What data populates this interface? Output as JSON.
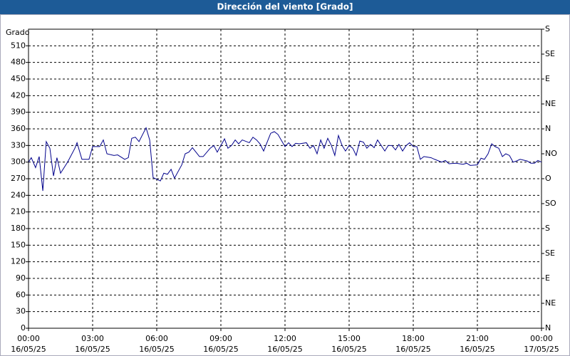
{
  "chart_data": {
    "type": "line",
    "title": "Dirección del viento [Grado]",
    "ylabel": "Grado",
    "x": [
      0,
      0.13,
      0.33,
      0.5,
      0.67,
      0.83,
      1.0,
      1.17,
      1.33,
      1.5,
      1.83,
      2.17,
      2.27,
      2.5,
      2.83,
      3.0,
      3.33,
      3.5,
      3.67,
      4.0,
      4.17,
      4.5,
      4.67,
      4.83,
      5.0,
      5.17,
      5.5,
      5.67,
      5.83,
      6.17,
      6.33,
      6.5,
      6.67,
      6.83,
      7.17,
      7.33,
      7.5,
      7.67,
      8.0,
      8.17,
      8.5,
      8.67,
      8.83,
      9.0,
      9.17,
      9.33,
      9.5,
      9.67,
      9.83,
      10.0,
      10.33,
      10.5,
      10.67,
      10.83,
      11.0,
      11.33,
      11.5,
      11.67,
      12.0,
      12.17,
      12.33,
      12.5,
      12.67,
      13.0,
      13.17,
      13.33,
      13.5,
      13.67,
      13.83,
      14.0,
      14.17,
      14.33,
      14.5,
      14.67,
      14.83,
      15.0,
      15.17,
      15.33,
      15.5,
      15.67,
      15.83,
      16.0,
      16.17,
      16.33,
      16.67,
      16.83,
      17.0,
      17.17,
      17.33,
      17.5,
      17.67,
      17.83,
      18.0,
      18.17,
      18.33,
      18.5,
      18.83,
      19.0,
      19.33,
      19.5,
      19.67,
      20.0,
      20.33,
      20.5,
      20.67,
      21.0,
      21.17,
      21.33,
      21.5,
      21.67,
      21.83,
      22.0,
      22.17,
      22.33,
      22.5,
      22.67,
      22.83,
      23.0,
      23.33,
      23.5,
      23.67,
      23.83,
      24.0
    ],
    "series": [
      {
        "color": "#00008b",
        "values": [
          300,
          308,
          290,
          310,
          248,
          337,
          325,
          275,
          308,
          280,
          300,
          325,
          335,
          305,
          305,
          328,
          328,
          340,
          315,
          312,
          313,
          305,
          308,
          343,
          345,
          337,
          362,
          340,
          272,
          266,
          280,
          278,
          287,
          271,
          295,
          315,
          318,
          326,
          310,
          310,
          325,
          330,
          318,
          330,
          342,
          325,
          330,
          340,
          333,
          340,
          335,
          345,
          340,
          333,
          320,
          352,
          355,
          350,
          328,
          335,
          328,
          334,
          333,
          335,
          325,
          330,
          315,
          340,
          325,
          343,
          330,
          312,
          348,
          330,
          320,
          330,
          325,
          312,
          338,
          336,
          325,
          332,
          326,
          340,
          320,
          330,
          330,
          322,
          332,
          320,
          330,
          335,
          328,
          328,
          305,
          310,
          308,
          305,
          300,
          303,
          297,
          298,
          296,
          298,
          294,
          295,
          307,
          305,
          315,
          333,
          328,
          325,
          310,
          315,
          312,
          300,
          302,
          305,
          302,
          298,
          298,
          303,
          300
        ]
      }
    ],
    "xlim": [
      0,
      24
    ],
    "xticks": [
      {
        "value": 0,
        "label": "00:00"
      },
      {
        "value": 3,
        "label": "03:00"
      },
      {
        "value": 6,
        "label": "06:00"
      },
      {
        "value": 9,
        "label": "09:00"
      },
      {
        "value": 12,
        "label": "12:00"
      },
      {
        "value": 15,
        "label": "15:00"
      },
      {
        "value": 18,
        "label": "18:00"
      },
      {
        "value": 21,
        "label": "21:00"
      },
      {
        "value": 24,
        "label": "00:00"
      }
    ],
    "xtick_dates": [
      "16/05/25",
      "16/05/25",
      "16/05/25",
      "16/05/25",
      "16/05/25",
      "16/05/25",
      "16/05/25",
      "16/05/25",
      "17/05/25"
    ],
    "ylim": [
      0,
      540
    ],
    "yticks": [
      0,
      30,
      60,
      90,
      120,
      150,
      180,
      210,
      240,
      270,
      300,
      330,
      360,
      390,
      420,
      450,
      480,
      510
    ],
    "y2lim": [
      0,
      540
    ],
    "y2ticks": [
      {
        "value": 0,
        "label": "N"
      },
      {
        "value": 45,
        "label": "NE"
      },
      {
        "value": 90,
        "label": "E"
      },
      {
        "value": 135,
        "label": "SE"
      },
      {
        "value": 180,
        "label": "S"
      },
      {
        "value": 225,
        "label": "SO"
      },
      {
        "value": 270,
        "label": "O"
      },
      {
        "value": 315,
        "label": "NO"
      },
      {
        "value": 360,
        "label": "N"
      },
      {
        "value": 405,
        "label": "NE"
      },
      {
        "value": 450,
        "label": "E"
      },
      {
        "value": 495,
        "label": "SE"
      },
      {
        "value": 540,
        "label": "S"
      }
    ],
    "grid": true
  }
}
